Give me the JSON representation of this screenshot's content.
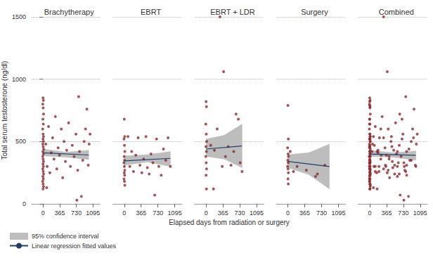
{
  "chart_data": [
    {
      "type": "scatter",
      "title": "Brachytherapy",
      "ylabel": "Total serum testosterone (ng/dl)",
      "xlim": [
        -250,
        1250
      ],
      "xticks": [
        0,
        365,
        730,
        1095
      ],
      "ylim": [
        0,
        1500
      ],
      "yticks": [
        0,
        500,
        1000,
        1500
      ],
      "grid": true,
      "legend": "bottom",
      "series": [
        {
          "type": "scatter",
          "color": "#8b2a2e",
          "marker": "circle",
          "x": [
            0,
            8,
            -6,
            4,
            12,
            -3,
            6,
            -8,
            2,
            10,
            0,
            8,
            -6,
            4,
            12,
            -3,
            6,
            -8,
            2,
            10,
            0,
            8,
            -6,
            4,
            12,
            -3,
            6,
            -8,
            2,
            10,
            0,
            60,
            90,
            120,
            150,
            180,
            210,
            240,
            270,
            300,
            330,
            360,
            400,
            430,
            460,
            490,
            520,
            560,
            600,
            640,
            680,
            720,
            760,
            780,
            800,
            840,
            870,
            900,
            930,
            960,
            990,
            1010,
            1030,
            80,
            740
          ],
          "values": [
            850,
            830,
            800,
            770,
            720,
            680,
            640,
            600,
            560,
            540,
            520,
            500,
            480,
            460,
            440,
            420,
            400,
            380,
            360,
            340,
            320,
            300,
            280,
            260,
            240,
            220,
            200,
            180,
            160,
            140,
            120,
            480,
            300,
            620,
            250,
            410,
            530,
            360,
            700,
            280,
            450,
            390,
            600,
            210,
            500,
            340,
            430,
            650,
            300,
            470,
            380,
            560,
            270,
            860,
            420,
            60,
            350,
            500,
            600,
            760,
            310,
            480,
            560,
            130,
            30
          ]
        },
        {
          "type": "band",
          "name": "95% confidence interval",
          "color": "#bdbdbd",
          "x": [
            0,
            500,
            1000
          ],
          "lower": [
            385,
            375,
            355
          ],
          "upper": [
            440,
            415,
            430
          ]
        },
        {
          "type": "line",
          "name": "Linear regression fitted values",
          "color": "#1f3d6b",
          "line_style": "solid",
          "x": [
            0,
            1000
          ],
          "values": [
            410,
            392
          ]
        }
      ]
    },
    {
      "type": "scatter",
      "title": "EBRT",
      "tick_labels": "x",
      "xlim": [
        -250,
        1250
      ],
      "xticks": [
        0,
        365,
        730,
        1095
      ],
      "ylim": [
        0,
        1500
      ],
      "yticks": [
        0,
        500,
        1000,
        1500
      ],
      "grid": true,
      "series": [
        {
          "type": "scatter",
          "color": "#8b2a2e",
          "marker": "circle",
          "x": [
            0,
            8,
            -6,
            4,
            12,
            -3,
            6,
            -8,
            2,
            10,
            0,
            8,
            -6,
            4,
            12,
            80,
            120,
            160,
            200,
            250,
            300,
            340,
            380,
            420,
            470,
            500,
            540,
            580,
            620,
            660,
            700,
            750,
            800,
            850,
            900,
            950,
            1000
          ],
          "values": [
            680,
            540,
            520,
            470,
            420,
            380,
            350,
            330,
            300,
            270,
            250,
            230,
            200,
            180,
            150,
            540,
            300,
            420,
            260,
            390,
            530,
            310,
            250,
            360,
            540,
            290,
            240,
            400,
            330,
            70,
            520,
            300,
            230,
            440,
            350,
            530,
            300
          ]
        },
        {
          "type": "band",
          "name": "95% confidence interval",
          "color": "#bdbdbd",
          "x": [
            0,
            500,
            1000
          ],
          "lower": [
            310,
            335,
            300
          ],
          "upper": [
            385,
            395,
            420
          ]
        },
        {
          "type": "line",
          "name": "Linear regression fitted values",
          "color": "#1f3d6b",
          "line_style": "solid",
          "x": [
            0,
            1000
          ],
          "values": [
            345,
            365
          ]
        }
      ]
    },
    {
      "type": "scatter",
      "title": "EBRT + LDR",
      "tick_labels": "x",
      "xlabel": "Elapsed days from radiation or surgery",
      "xlim": [
        -250,
        1250
      ],
      "xticks": [
        0,
        365,
        730,
        1095
      ],
      "ylim": [
        0,
        1500
      ],
      "yticks": [
        0,
        500,
        1000,
        1500
      ],
      "grid": true,
      "series": [
        {
          "type": "scatter",
          "color": "#8b2a2e",
          "marker": "circle",
          "x": [
            0,
            8,
            -6,
            4,
            12,
            -3,
            6,
            -8,
            2,
            10,
            0,
            8,
            100,
            160,
            180,
            240,
            300,
            350,
            380,
            420,
            480,
            540,
            600,
            650,
            700,
            740,
            780
          ],
          "values": [
            820,
            780,
            640,
            560,
            500,
            460,
            420,
            380,
            330,
            280,
            230,
            120,
            470,
            120,
            430,
            600,
            1500,
            300,
            1060,
            380,
            460,
            310,
            420,
            720,
            680,
            330,
            260
          ]
        },
        {
          "type": "band",
          "name": "95% confidence interval",
          "color": "#bdbdbd",
          "x": [
            0,
            390,
            780
          ],
          "lower": [
            380,
            360,
            290
          ],
          "upper": [
            520,
            550,
            640
          ]
        },
        {
          "type": "line",
          "name": "Linear regression fitted values",
          "color": "#1f3d6b",
          "line_style": "solid",
          "x": [
            0,
            780
          ],
          "values": [
            440,
            465
          ]
        }
      ]
    },
    {
      "type": "scatter",
      "title": "Surgery",
      "tick_labels": "x",
      "xlim": [
        -250,
        1250
      ],
      "xticks": [
        0,
        365,
        730,
        1095
      ],
      "ylim": [
        0,
        1500
      ],
      "yticks": [
        0,
        500,
        1000,
        1500
      ],
      "grid": true,
      "series": [
        {
          "type": "scatter",
          "color": "#8b2a2e",
          "marker": "circle",
          "x": [
            0,
            8,
            -6,
            4,
            12,
            -3,
            6,
            -8,
            2,
            10,
            0,
            8,
            50,
            120,
            200,
            400,
            600,
            640,
            800
          ],
          "values": [
            790,
            520,
            450,
            400,
            380,
            350,
            330,
            300,
            280,
            250,
            200,
            160,
            420,
            260,
            300,
            270,
            220,
            240,
            310
          ]
        },
        {
          "type": "band",
          "name": "95% confidence interval",
          "color": "#bdbdbd",
          "x": [
            0,
            450,
            900
          ],
          "lower": [
            290,
            235,
            120
          ],
          "upper": [
            395,
            410,
            480
          ]
        },
        {
          "type": "line",
          "name": "Linear regression fitted values",
          "color": "#1f3d6b",
          "line_style": "solid",
          "x": [
            0,
            900
          ],
          "values": [
            340,
            300
          ]
        }
      ]
    },
    {
      "type": "scatter",
      "title": "Combined",
      "tick_labels": "x",
      "xlim": [
        -250,
        1250
      ],
      "xticks": [
        0,
        365,
        730,
        1095
      ],
      "ylim": [
        0,
        1500
      ],
      "yticks": [
        0,
        500,
        1000,
        1500
      ],
      "grid": true,
      "series": [
        {
          "type": "scatter",
          "color": "#8b2a2e",
          "marker": "circle",
          "x": [
            0,
            8,
            -6,
            4,
            12,
            -3,
            6,
            -8,
            2,
            10,
            0,
            8,
            -6,
            4,
            12,
            -3,
            6,
            -8,
            2,
            10,
            0,
            8,
            -6,
            4,
            12,
            -3,
            6,
            -8,
            2,
            10,
            0,
            60,
            90,
            120,
            150,
            180,
            210,
            240,
            270,
            300,
            330,
            360,
            400,
            430,
            460,
            490,
            520,
            560,
            600,
            640,
            680,
            720,
            760,
            780,
            800,
            840,
            870,
            900,
            930,
            960,
            990,
            1010,
            1030,
            80,
            740,
            0,
            8,
            -6,
            4,
            12,
            -3,
            6,
            -8,
            2,
            10,
            0,
            8,
            -6,
            4,
            12,
            80,
            120,
            160,
            200,
            250,
            300,
            340,
            380,
            420,
            470,
            500,
            540,
            580,
            620,
            660,
            700,
            750,
            800,
            850,
            900,
            950,
            1000,
            0,
            8,
            -6,
            4,
            12,
            -3,
            6,
            -8,
            2,
            10,
            0,
            8,
            100,
            160,
            180,
            240,
            300,
            350,
            380,
            420,
            480,
            540,
            600,
            650,
            700,
            740,
            780,
            0,
            8,
            -6,
            4,
            12,
            -3,
            6,
            -8,
            2,
            10,
            0,
            8,
            50,
            120,
            200,
            400,
            600,
            640,
            800
          ],
          "values": [
            850,
            830,
            800,
            770,
            720,
            680,
            640,
            600,
            560,
            540,
            520,
            500,
            480,
            460,
            440,
            420,
            400,
            380,
            360,
            340,
            320,
            300,
            280,
            260,
            240,
            220,
            200,
            180,
            160,
            140,
            120,
            480,
            300,
            620,
            250,
            410,
            530,
            360,
            700,
            280,
            450,
            390,
            600,
            210,
            500,
            340,
            430,
            650,
            300,
            470,
            380,
            560,
            270,
            860,
            420,
            60,
            350,
            500,
            600,
            760,
            310,
            480,
            560,
            130,
            30,
            680,
            540,
            520,
            470,
            420,
            380,
            350,
            330,
            300,
            270,
            250,
            230,
            200,
            180,
            150,
            540,
            300,
            420,
            260,
            390,
            530,
            310,
            250,
            360,
            540,
            290,
            240,
            400,
            330,
            70,
            520,
            300,
            230,
            440,
            350,
            530,
            300,
            820,
            780,
            640,
            560,
            500,
            460,
            420,
            380,
            330,
            280,
            230,
            120,
            470,
            120,
            430,
            600,
            1500,
            300,
            1060,
            380,
            460,
            310,
            420,
            720,
            680,
            330,
            260,
            790,
            520,
            450,
            400,
            380,
            350,
            330,
            300,
            280,
            250,
            200,
            160,
            420,
            260,
            300,
            270,
            220,
            240,
            310
          ]
        },
        {
          "type": "band",
          "name": "95% confidence interval",
          "color": "#bdbdbd",
          "x": [
            0,
            500,
            1000
          ],
          "lower": [
            380,
            375,
            350
          ],
          "upper": [
            430,
            410,
            425
          ]
        },
        {
          "type": "line",
          "name": "Linear regression fitted values",
          "color": "#1f3d6b",
          "line_style": "solid",
          "x": [
            0,
            1000
          ],
          "values": [
            400,
            390
          ]
        }
      ]
    }
  ]
}
